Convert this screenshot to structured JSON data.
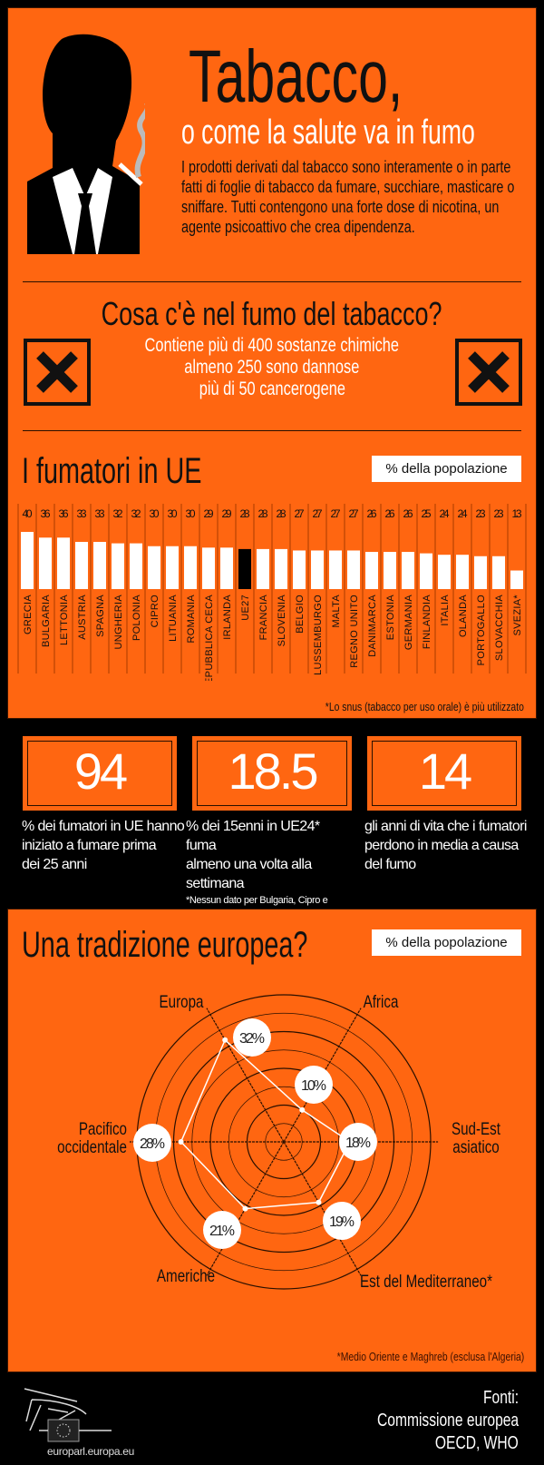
{
  "header": {
    "title": "Tabacco,",
    "subtitle": "o come la salute va in fumo",
    "intro_lines": [
      "I prodotti derivati dal tabacco sono interamente o in parte",
      "fatti di foglie di tabacco da fumare, succhiare, masticare o",
      "sniffare. Tutti contengono una forte dose di nicotina, un",
      "agente psicoattivo che crea dipendenza."
    ]
  },
  "smoke": {
    "heading": "Cosa c'è nel fumo del tabacco?",
    "lines": [
      "Contiene più di 400 sostanze chimiche",
      "almeno 250 sono dannose",
      "più di 50 cancerogene"
    ]
  },
  "colors": {
    "orange": "#ff6611",
    "bar": "#ffffff",
    "highlight_bar": "#000000"
  },
  "chart_data": [
    {
      "type": "bar",
      "title": "I fumatori in UE",
      "unit_label": "% della popolazione",
      "categories": [
        "GRECIA",
        "BULGARIA",
        "LETTONIA",
        "AUSTRIA",
        "SPAGNA",
        "UNGHERIA",
        "POLONIA",
        "CIPRO",
        "LITUANIA",
        "ROMANIA",
        "REPUBBLICA CECA",
        "IRLANDA",
        "UE27",
        "FRANCIA",
        "SLOVENIA",
        "BELGIO",
        "LUSSEMBURGO",
        "MALTA",
        "REGNO UNITO",
        "DANIMARCA",
        "ESTONIA",
        "GERMANIA",
        "FINLANDIA",
        "ITALIA",
        "OLANDA",
        "PORTOGALLO",
        "SLOVACCHIA",
        "SVEZIA*"
      ],
      "values": [
        40,
        36,
        36,
        33,
        33,
        32,
        32,
        30,
        30,
        30,
        29,
        29,
        28,
        28,
        28,
        27,
        27,
        27,
        27,
        26,
        26,
        26,
        25,
        24,
        24,
        23,
        23,
        13
      ],
      "highlight": "UE27",
      "ylim": [
        0,
        40
      ],
      "footnote": "*Lo snus (tabacco per uso orale) è più utilizzato"
    },
    {
      "type": "radar",
      "title": "Una tradizione europea?",
      "unit_label": "% della popolazione",
      "categories": [
        "Europa",
        "Africa",
        "Sud-Est asiatico",
        "Est del Mediterraneo*",
        "Americhe",
        "Pacifico occidentale"
      ],
      "values": [
        32,
        10,
        18,
        19,
        21,
        28
      ],
      "value_labels": [
        "32%",
        "10%",
        "18%",
        "19%",
        "21%",
        "28%"
      ],
      "rlim": [
        0,
        40
      ],
      "footnote": "*Medio Oriente e Maghreb (esclusa l'Algeria)"
    }
  ],
  "stats": [
    {
      "value": "94",
      "caption_lines": [
        "% dei fumatori in UE hanno",
        "iniziato a fumare prima",
        "dei 25 anni"
      ]
    },
    {
      "value": "18.5",
      "caption_lines": [
        "% dei 15enni in UE24* fuma",
        "almeno una volta alla",
        "settimana"
      ],
      "footnote": "*Nessun dato per Bulgaria, Cipro e Malta"
    },
    {
      "value": "14",
      "caption_lines": [
        "gli anni di vita che i fumatori",
        "perdono in media a causa",
        "del fumo"
      ]
    }
  ],
  "footer": {
    "url": "europarl.europa.eu",
    "sources_lines": [
      "Fonti:",
      "Commissione europea",
      "OECD, WHO"
    ]
  }
}
